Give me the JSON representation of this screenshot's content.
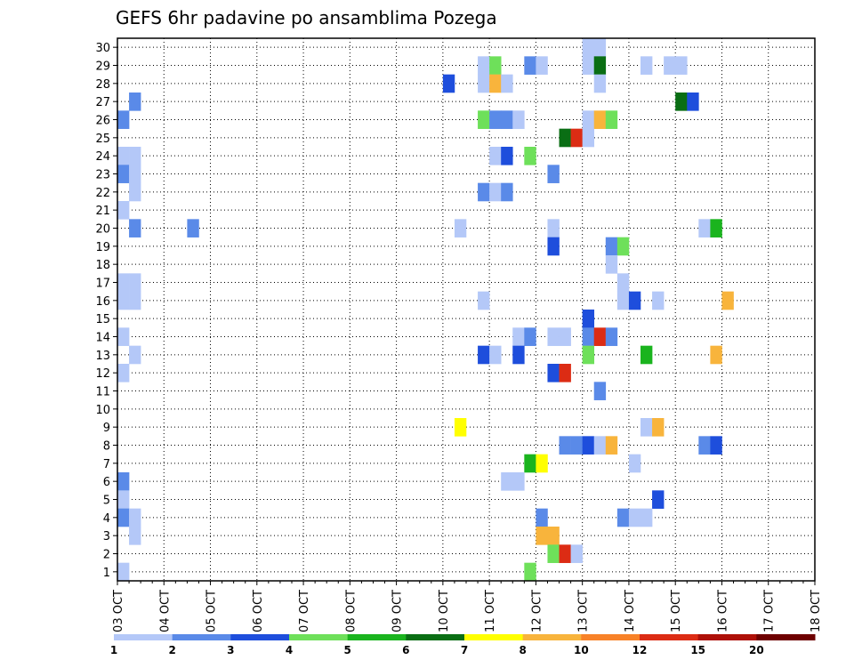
{
  "chart_data": {
    "type": "heatmap",
    "title": "GEFS 6hr padavine po ansamblima Pozega",
    "xlabel": "",
    "ylabel": "",
    "x_ticks": [
      "03 OCT",
      "04 OCT",
      "05 OCT",
      "06 OCT",
      "07 OCT",
      "08 OCT",
      "09 OCT",
      "10 OCT",
      "11 OCT",
      "12 OCT",
      "13 OCT",
      "14 OCT",
      "15 OCT",
      "16 OCT",
      "17 OCT",
      "18 OCT"
    ],
    "y_ticks": [
      "1",
      "2",
      "3",
      "4",
      "5",
      "6",
      "7",
      "8",
      "9",
      "10",
      "11",
      "12",
      "13",
      "14",
      "15",
      "16",
      "17",
      "18",
      "19",
      "20",
      "21",
      "22",
      "23",
      "24",
      "25",
      "26",
      "27",
      "28",
      "29",
      "30"
    ],
    "xlim": [
      0,
      60
    ],
    "ylim": [
      0.5,
      30.5
    ],
    "grid": true,
    "legend_position": "bottom",
    "color_scale": {
      "colors": [
        "#b4c8f8",
        "#5a8ae8",
        "#1e4edc",
        "#6ee05a",
        "#1ab41e",
        "#0a6e14",
        "#ffff00",
        "#f8b43c",
        "#f88228",
        "#dc2c14",
        "#ae1008",
        "#6e0000"
      ],
      "labels": [
        "1",
        "2",
        "3",
        "4",
        "5",
        "6",
        "7",
        "8",
        "10",
        "12",
        "15",
        "20"
      ]
    },
    "cells": [
      {
        "member": 30,
        "step": 40,
        "value": 1
      },
      {
        "member": 30,
        "step": 41,
        "value": 1
      },
      {
        "member": 29,
        "step": 31,
        "value": 1
      },
      {
        "member": 29,
        "step": 32,
        "value": 4
      },
      {
        "member": 29,
        "step": 35,
        "value": 2
      },
      {
        "member": 29,
        "step": 36,
        "value": 1
      },
      {
        "member": 29,
        "step": 40,
        "value": 1
      },
      {
        "member": 29,
        "step": 41,
        "value": 6
      },
      {
        "member": 29,
        "step": 45,
        "value": 1
      },
      {
        "member": 29,
        "step": 47,
        "value": 1
      },
      {
        "member": 29,
        "step": 48,
        "value": 1
      },
      {
        "member": 28,
        "step": 28,
        "value": 3
      },
      {
        "member": 28,
        "step": 31,
        "value": 1
      },
      {
        "member": 28,
        "step": 32,
        "value": 8
      },
      {
        "member": 28,
        "step": 33,
        "value": 1
      },
      {
        "member": 28,
        "step": 41,
        "value": 1
      },
      {
        "member": 27,
        "step": 1,
        "value": 2
      },
      {
        "member": 27,
        "step": 48,
        "value": 6
      },
      {
        "member": 27,
        "step": 49,
        "value": 3
      },
      {
        "member": 26,
        "step": 0,
        "value": 2
      },
      {
        "member": 26,
        "step": 31,
        "value": 4
      },
      {
        "member": 26,
        "step": 32,
        "value": 2
      },
      {
        "member": 26,
        "step": 33,
        "value": 2
      },
      {
        "member": 26,
        "step": 34,
        "value": 1
      },
      {
        "member": 26,
        "step": 40,
        "value": 1
      },
      {
        "member": 26,
        "step": 41,
        "value": 8
      },
      {
        "member": 26,
        "step": 42,
        "value": 4
      },
      {
        "member": 25,
        "step": 38,
        "value": 6
      },
      {
        "member": 25,
        "step": 39,
        "value": 12
      },
      {
        "member": 25,
        "step": 40,
        "value": 1
      },
      {
        "member": 24,
        "step": 0,
        "value": 1
      },
      {
        "member": 24,
        "step": 1,
        "value": 1
      },
      {
        "member": 24,
        "step": 32,
        "value": 1
      },
      {
        "member": 24,
        "step": 33,
        "value": 3
      },
      {
        "member": 24,
        "step": 35,
        "value": 4
      },
      {
        "member": 23,
        "step": 0,
        "value": 2
      },
      {
        "member": 23,
        "step": 1,
        "value": 1
      },
      {
        "member": 23,
        "step": 37,
        "value": 2
      },
      {
        "member": 22,
        "step": 1,
        "value": 1
      },
      {
        "member": 22,
        "step": 31,
        "value": 2
      },
      {
        "member": 22,
        "step": 32,
        "value": 1
      },
      {
        "member": 22,
        "step": 33,
        "value": 2
      },
      {
        "member": 21,
        "step": 0,
        "value": 1
      },
      {
        "member": 20,
        "step": 1,
        "value": 2
      },
      {
        "member": 20,
        "step": 6,
        "value": 2
      },
      {
        "member": 20,
        "step": 29,
        "value": 1
      },
      {
        "member": 20,
        "step": 37,
        "value": 1
      },
      {
        "member": 20,
        "step": 50,
        "value": 1
      },
      {
        "member": 20,
        "step": 51,
        "value": 5
      },
      {
        "member": 19,
        "step": 37,
        "value": 3
      },
      {
        "member": 19,
        "step": 42,
        "value": 2
      },
      {
        "member": 19,
        "step": 43,
        "value": 4
      },
      {
        "member": 18,
        "step": 42,
        "value": 1
      },
      {
        "member": 17,
        "step": 0,
        "value": 1
      },
      {
        "member": 17,
        "step": 1,
        "value": 1
      },
      {
        "member": 16,
        "step": 0,
        "value": 1
      },
      {
        "member": 16,
        "step": 1,
        "value": 1
      },
      {
        "member": 17,
        "step": 43,
        "value": 1
      },
      {
        "member": 16,
        "step": 43,
        "value": 1
      },
      {
        "member": 16,
        "step": 44,
        "value": 3
      },
      {
        "member": 16,
        "step": 46,
        "value": 1
      },
      {
        "member": 16,
        "step": 52,
        "value": 8
      },
      {
        "member": 16,
        "step": 31,
        "value": 1
      },
      {
        "member": 15,
        "step": 40,
        "value": 3
      },
      {
        "member": 14,
        "step": 0,
        "value": 1
      },
      {
        "member": 14,
        "step": 34,
        "value": 1
      },
      {
        "member": 14,
        "step": 35,
        "value": 2
      },
      {
        "member": 14,
        "step": 37,
        "value": 1
      },
      {
        "member": 14,
        "step": 38,
        "value": 1
      },
      {
        "member": 14,
        "step": 40,
        "value": 2
      },
      {
        "member": 14,
        "step": 41,
        "value": 12
      },
      {
        "member": 14,
        "step": 42,
        "value": 2
      },
      {
        "member": 13,
        "step": 1,
        "value": 1
      },
      {
        "member": 13,
        "step": 31,
        "value": 3
      },
      {
        "member": 13,
        "step": 32,
        "value": 1
      },
      {
        "member": 13,
        "step": 34,
        "value": 3
      },
      {
        "member": 13,
        "step": 40,
        "value": 4
      },
      {
        "member": 13,
        "step": 45,
        "value": 5
      },
      {
        "member": 13,
        "step": 51,
        "value": 8
      },
      {
        "member": 12,
        "step": 0,
        "value": 1
      },
      {
        "member": 12,
        "step": 37,
        "value": 3
      },
      {
        "member": 12,
        "step": 38,
        "value": 12
      },
      {
        "member": 11,
        "step": 41,
        "value": 2
      },
      {
        "member": 9,
        "step": 29,
        "value": 7
      },
      {
        "member": 9,
        "step": 45,
        "value": 1
      },
      {
        "member": 9,
        "step": 46,
        "value": 8
      },
      {
        "member": 8,
        "step": 38,
        "value": 2
      },
      {
        "member": 8,
        "step": 39,
        "value": 2
      },
      {
        "member": 8,
        "step": 40,
        "value": 3
      },
      {
        "member": 8,
        "step": 41,
        "value": 1
      },
      {
        "member": 8,
        "step": 42,
        "value": 8
      },
      {
        "member": 8,
        "step": 50,
        "value": 2
      },
      {
        "member": 8,
        "step": 51,
        "value": 3
      },
      {
        "member": 7,
        "step": 35,
        "value": 5
      },
      {
        "member": 7,
        "step": 36,
        "value": 7
      },
      {
        "member": 7,
        "step": 44,
        "value": 1
      },
      {
        "member": 6,
        "step": 0,
        "value": 2
      },
      {
        "member": 6,
        "step": 33,
        "value": 1
      },
      {
        "member": 6,
        "step": 34,
        "value": 1
      },
      {
        "member": 5,
        "step": 0,
        "value": 1
      },
      {
        "member": 5,
        "step": 46,
        "value": 3
      },
      {
        "member": 4,
        "step": 0,
        "value": 2
      },
      {
        "member": 4,
        "step": 1,
        "value": 1
      },
      {
        "member": 4,
        "step": 36,
        "value": 2
      },
      {
        "member": 4,
        "step": 43,
        "value": 2
      },
      {
        "member": 4,
        "step": 44,
        "value": 1
      },
      {
        "member": 4,
        "step": 45,
        "value": 1
      },
      {
        "member": 3,
        "step": 1,
        "value": 1
      },
      {
        "member": 3,
        "step": 36,
        "value": 8
      },
      {
        "member": 3,
        "step": 37,
        "value": 8
      },
      {
        "member": 2,
        "step": 37,
        "value": 4
      },
      {
        "member": 2,
        "step": 38,
        "value": 12
      },
      {
        "member": 2,
        "step": 39,
        "value": 1
      },
      {
        "member": 1,
        "step": 0,
        "value": 1
      },
      {
        "member": 1,
        "step": 35,
        "value": 4
      }
    ]
  }
}
